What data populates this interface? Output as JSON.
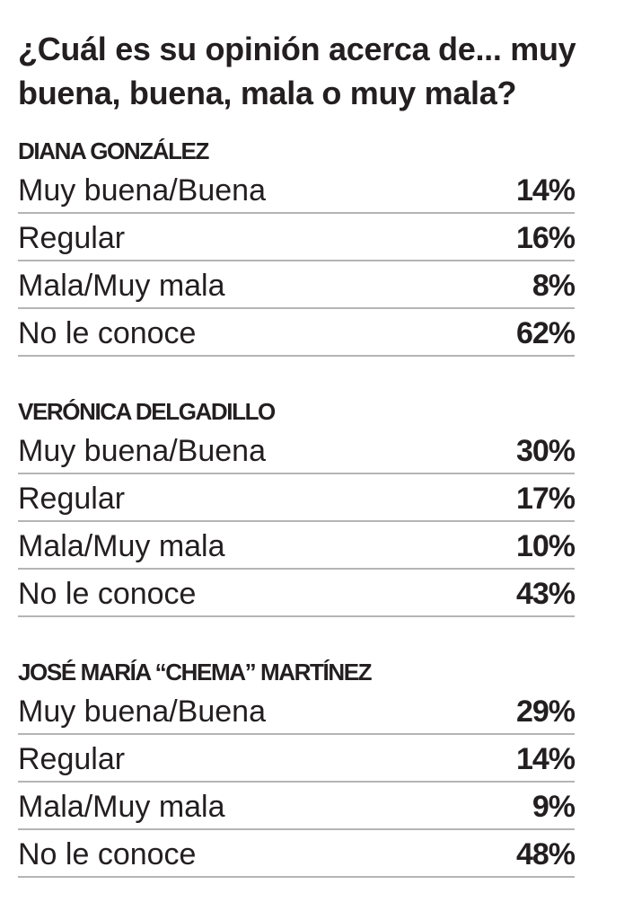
{
  "chart_data": {
    "type": "table",
    "title": "¿Cuál es su opinión acerca de... muy buena, buena, mala o muy mala?",
    "columns": [
      "Muy buena/Buena",
      "Regular",
      "Mala/Muy mala",
      "No le conoce"
    ],
    "unit": "%",
    "groups": [
      {
        "name": "DIANA GONZÁLEZ",
        "rows": [
          {
            "label": "Muy buena/Buena",
            "value": 14,
            "display": "14%"
          },
          {
            "label": "Regular",
            "value": 16,
            "display": "16%"
          },
          {
            "label": "Mala/Muy mala",
            "value": 8,
            "display": "8%"
          },
          {
            "label": "No le conoce",
            "value": 62,
            "display": "62%"
          }
        ]
      },
      {
        "name": "VERÓNICA DELGADILLO",
        "rows": [
          {
            "label": "Muy buena/Buena",
            "value": 30,
            "display": "30%"
          },
          {
            "label": "Regular",
            "value": 17,
            "display": "17%"
          },
          {
            "label": "Mala/Muy mala",
            "value": 10,
            "display": "10%"
          },
          {
            "label": "No le conoce",
            "value": 43,
            "display": "43%"
          }
        ]
      },
      {
        "name": "JOSÉ MARÍA “CHEMA” MARTÍNEZ",
        "rows": [
          {
            "label": "Muy buena/Buena",
            "value": 29,
            "display": "29%"
          },
          {
            "label": "Regular",
            "value": 14,
            "display": "14%"
          },
          {
            "label": "Mala/Muy mala",
            "value": 9,
            "display": "9%"
          },
          {
            "label": "No le conoce",
            "value": 48,
            "display": "48%"
          }
        ]
      }
    ]
  },
  "colors": {
    "text": "#231f20",
    "rule": "#b5b5b5",
    "background": "#ffffff"
  }
}
